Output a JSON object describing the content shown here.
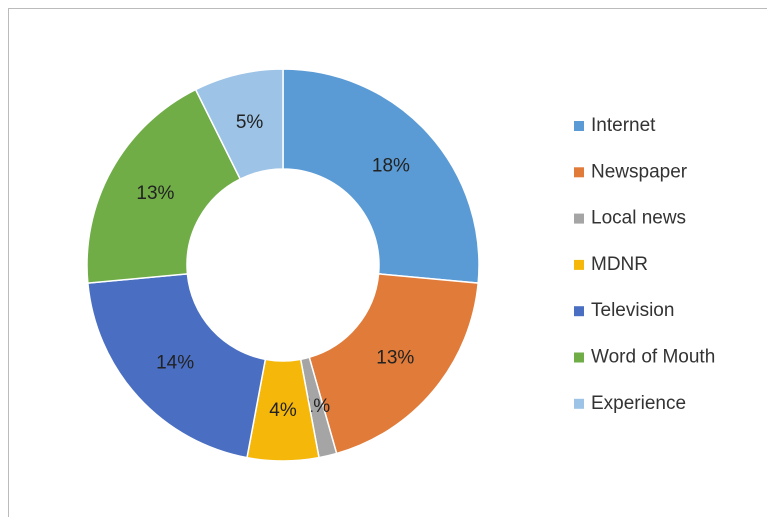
{
  "chart_data": {
    "type": "donut",
    "categories": [
      "Internet",
      "Newspaper",
      "Local news",
      "MDNR",
      "Television",
      "Word of Mouth",
      "Experience"
    ],
    "values": [
      18,
      13,
      1,
      4,
      14,
      13,
      5
    ],
    "value_labels": [
      "18%",
      "13%",
      "1%",
      "4%",
      "14%",
      "13%",
      "5%"
    ],
    "colors": [
      "#5b9bd5",
      "#e07b39",
      "#a5a5a5",
      "#f5b80a",
      "#4a6fc2",
      "#70ad47",
      "#9dc3e6"
    ],
    "legend": "right"
  }
}
